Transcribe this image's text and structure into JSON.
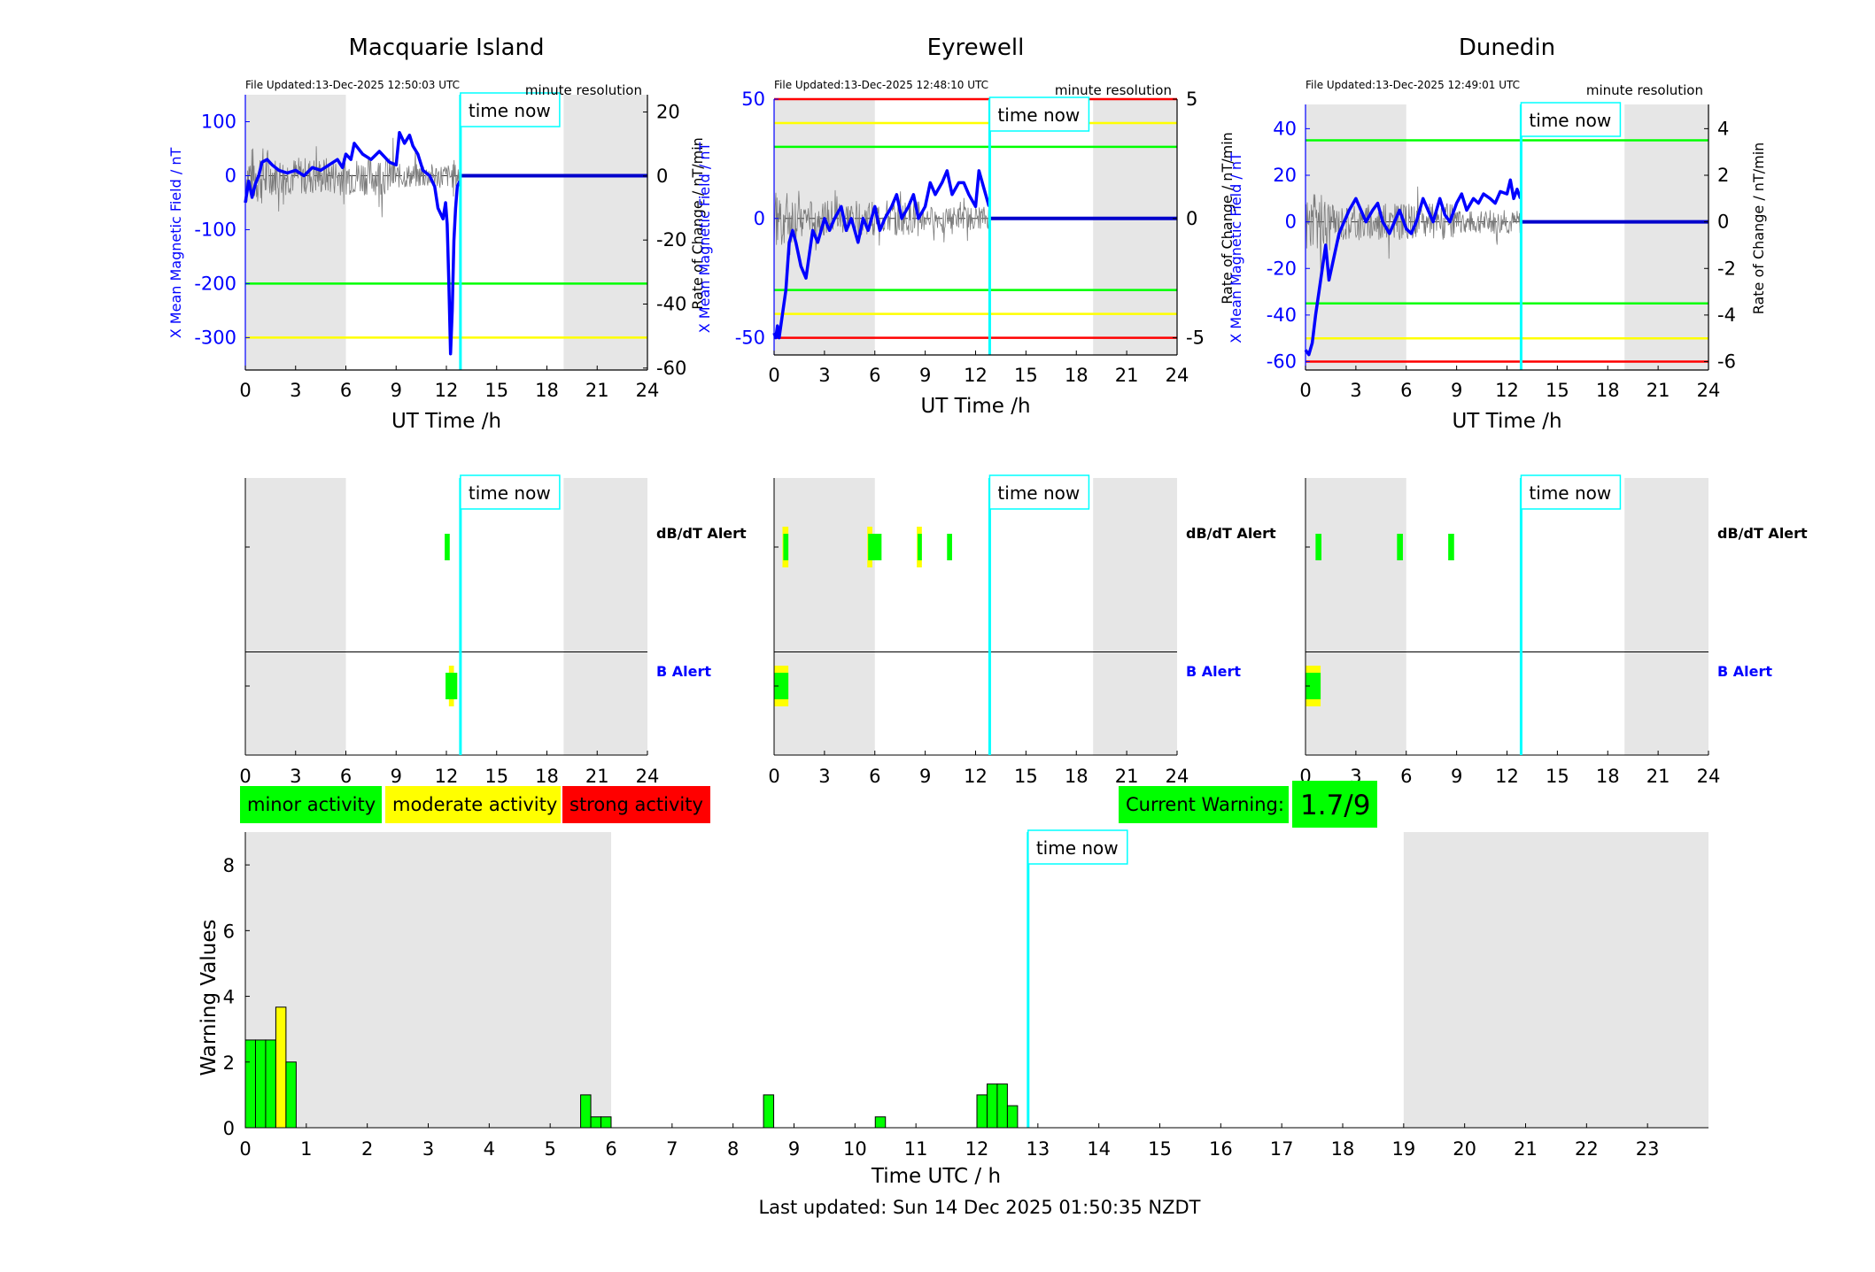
{
  "last_updated": "Last updated: Sun 14 Dec 2025 01:50:35 NZDT",
  "time_now_label": "time now",
  "now_hour": 12.84,
  "colors": {
    "minor": "#00ff00",
    "moderate": "#ffff00",
    "strong": "#ff0000",
    "now": "#00ffff",
    "field": "#0000ff",
    "night": "#e6e6e6"
  },
  "legend": {
    "minor": "minor activity",
    "moderate": "moderate activity",
    "strong": "strong activity"
  },
  "current_warning": {
    "label": "Current Warning:",
    "value": "1.7/9"
  },
  "alert_labels": {
    "dbdt": "dB/dT Alert",
    "b": "B Alert"
  },
  "chart_data": [
    {
      "type": "line",
      "station": "Macquarie Island",
      "title": "Macquarie Island",
      "file_updated": "File Updated:13-Dec-2025 12:50:03 UTC",
      "resolution": "minute resolution",
      "xlabel": "UT Time /h",
      "ylabel_left": "X Mean Magnetic Field / nT",
      "ylabel_right": "Rate of Change / nT/min",
      "xlim": [
        0,
        24
      ],
      "xticks": [
        0,
        3,
        6,
        9,
        12,
        15,
        18,
        21,
        24
      ],
      "xtick_labels": [
        "0",
        "3",
        "6",
        "9",
        "12",
        "15",
        "18",
        "21",
        "24"
      ],
      "ylim_left": [
        -360,
        150
      ],
      "yticks_left": [
        100,
        0,
        -100,
        -200,
        -300
      ],
      "ytick_labels_left": [
        "100",
        "0",
        "-100",
        "-200",
        "-300"
      ],
      "ylim_right": [
        -60.6,
        25.4
      ],
      "yticks_right": [
        20,
        0,
        -20,
        -40,
        -60
      ],
      "ytick_labels_right": [
        "20",
        "0",
        "-20",
        "-40",
        "-60"
      ],
      "night_shading": [
        [
          0,
          6
        ],
        [
          19,
          24
        ]
      ],
      "threshold_lines": [
        {
          "y": -200,
          "color": "#00ff00"
        },
        {
          "y": -300,
          "color": "#ffff00"
        }
      ],
      "field_x": [
        0,
        0.2,
        0.4,
        0.6,
        0.8,
        1,
        1.3,
        1.6,
        2,
        2.5,
        3,
        3.5,
        4,
        4.5,
        5,
        5.5,
        5.8,
        6,
        6.3,
        6.5,
        7,
        7.5,
        8,
        8.3,
        8.6,
        9,
        9.2,
        9.5,
        9.8,
        10,
        10.3,
        10.6,
        11,
        11.3,
        11.5,
        11.8,
        11.95,
        12.05,
        12.15,
        12.25,
        12.35,
        12.45,
        12.55,
        12.65,
        12.8
      ],
      "field_y": [
        -50,
        -10,
        -40,
        -15,
        0,
        25,
        30,
        20,
        10,
        5,
        10,
        0,
        15,
        10,
        20,
        30,
        15,
        40,
        30,
        60,
        40,
        30,
        45,
        35,
        25,
        20,
        80,
        60,
        75,
        55,
        40,
        10,
        0,
        -20,
        -60,
        -80,
        -50,
        -90,
        -200,
        -330,
        -250,
        -120,
        -60,
        -20,
        -10
      ],
      "forecast_y": 0,
      "rate_trace_range": [
        0,
        12.84
      ]
    },
    {
      "type": "line",
      "station": "Eyrewell",
      "title": "Eyrewell",
      "file_updated": "File Updated:13-Dec-2025 12:48:10 UTC",
      "resolution": "minute resolution",
      "xlabel": "UT Time /h",
      "ylabel_left": "X Mean Magnetic Field / nT",
      "ylabel_right": "Rate of Change / nT/min",
      "xlim": [
        0,
        24
      ],
      "xticks": [
        0,
        3,
        6,
        9,
        12,
        15,
        18,
        21,
        24
      ],
      "xtick_labels": [
        "0",
        "3",
        "6",
        "9",
        "12",
        "15",
        "18",
        "21",
        "24"
      ],
      "ylim_left": [
        -57.2,
        50
      ],
      "yticks_left": [
        50,
        0,
        -50
      ],
      "ytick_labels_left": [
        "50",
        "0",
        "-50"
      ],
      "ylim_right": [
        -5.72,
        5
      ],
      "yticks_right": [
        5,
        0,
        -5
      ],
      "ytick_labels_right": [
        "5",
        "0",
        "-5"
      ],
      "night_shading": [
        [
          0,
          6
        ],
        [
          19,
          24
        ]
      ],
      "threshold_lines": [
        {
          "y": 50,
          "color": "#ff0000"
        },
        {
          "y": 40,
          "color": "#ffff00"
        },
        {
          "y": 30,
          "color": "#00ff00"
        },
        {
          "y": -30,
          "color": "#00ff00"
        },
        {
          "y": -40,
          "color": "#ffff00"
        },
        {
          "y": -50,
          "color": "#ff0000"
        }
      ],
      "field_x": [
        0,
        0.1,
        0.2,
        0.3,
        0.5,
        0.7,
        0.9,
        1.1,
        1.3,
        1.6,
        1.9,
        2.1,
        2.3,
        2.6,
        3,
        3.3,
        3.6,
        4,
        4.3,
        4.6,
        5,
        5.3,
        5.6,
        6,
        6.3,
        6.6,
        7,
        7.3,
        7.6,
        8,
        8.3,
        8.6,
        9,
        9.3,
        9.6,
        10,
        10.3,
        10.6,
        11,
        11.3,
        11.6,
        12,
        12.2,
        12.4,
        12.6,
        12.8
      ],
      "field_y": [
        -48,
        -50,
        -45,
        -50,
        -40,
        -30,
        -10,
        -5,
        -10,
        -20,
        -25,
        -15,
        -5,
        -10,
        0,
        -5,
        0,
        5,
        -5,
        0,
        -10,
        0,
        -5,
        5,
        -5,
        0,
        5,
        10,
        0,
        5,
        10,
        0,
        5,
        15,
        10,
        15,
        20,
        10,
        15,
        15,
        10,
        5,
        20,
        15,
        10,
        5
      ],
      "forecast_y": 0,
      "rate_trace_range": [
        0,
        12.84
      ]
    },
    {
      "type": "line",
      "station": "Dunedin",
      "title": "Dunedin",
      "file_updated": "File Updated:13-Dec-2025 12:49:01 UTC",
      "resolution": "minute resolution",
      "xlabel": "UT Time /h",
      "ylabel_left": "X Mean Magnetic Field / nT",
      "ylabel_right": "Rate of Change / nT/min",
      "xlim": [
        0,
        24
      ],
      "xticks": [
        0,
        3,
        6,
        9,
        12,
        15,
        18,
        21,
        24
      ],
      "xtick_labels": [
        "0",
        "3",
        "6",
        "9",
        "12",
        "15",
        "18",
        "21",
        "24"
      ],
      "ylim_left": [
        -63.6,
        50.4
      ],
      "yticks_left": [
        40,
        20,
        0,
        -20,
        -40,
        -60
      ],
      "ytick_labels_left": [
        "40",
        "20",
        "0",
        "-20",
        "-40",
        "-60"
      ],
      "ylim_right": [
        -6.36,
        5.04
      ],
      "yticks_right": [
        4,
        2,
        0,
        -2,
        -4,
        -6
      ],
      "ytick_labels_right": [
        "4",
        "2",
        "0",
        "-2",
        "-4",
        "-6"
      ],
      "night_shading": [
        [
          0,
          6
        ],
        [
          19,
          24
        ]
      ],
      "threshold_lines": [
        {
          "y": 35,
          "color": "#00ff00"
        },
        {
          "y": -35,
          "color": "#00ff00"
        },
        {
          "y": -50,
          "color": "#ffff00"
        },
        {
          "y": -60,
          "color": "#ff0000"
        }
      ],
      "field_x": [
        0,
        0.2,
        0.4,
        0.6,
        0.8,
        1,
        1.2,
        1.4,
        1.7,
        2,
        2.3,
        2.6,
        3,
        3.3,
        3.6,
        4,
        4.3,
        4.6,
        5,
        5.3,
        5.6,
        6,
        6.3,
        6.6,
        7,
        7.3,
        7.6,
        8,
        8.3,
        8.6,
        9,
        9.3,
        9.6,
        10,
        10.3,
        10.6,
        11,
        11.3,
        11.6,
        12,
        12.2,
        12.4,
        12.6,
        12.8
      ],
      "field_y": [
        -55,
        -57,
        -52,
        -40,
        -30,
        -20,
        -10,
        -25,
        -15,
        -5,
        0,
        5,
        10,
        5,
        0,
        5,
        8,
        0,
        -5,
        0,
        5,
        -3,
        -5,
        0,
        10,
        5,
        0,
        10,
        3,
        0,
        8,
        12,
        5,
        10,
        8,
        12,
        10,
        8,
        13,
        12,
        18,
        10,
        14,
        10
      ],
      "forecast_y": 0,
      "rate_trace_range": [
        0,
        12.84
      ]
    },
    {
      "type": "bar",
      "station": "Macquarie Island",
      "name": "alerts-macquarie",
      "xlim": [
        0,
        24
      ],
      "xticks": [
        0,
        3,
        6,
        9,
        12,
        15,
        18,
        21,
        24
      ],
      "xtick_labels": [
        "0",
        "3",
        "6",
        "9",
        "12",
        "15",
        "18",
        "21",
        "24"
      ],
      "night_shading": [
        [
          0,
          6
        ],
        [
          19,
          24
        ]
      ],
      "dbdt_alerts": [
        {
          "start": 11.9,
          "end": 12.2,
          "level": "minor"
        }
      ],
      "b_alerts": [
        {
          "start": 12.15,
          "end": 12.45,
          "level": "moderate"
        },
        {
          "start": 11.95,
          "end": 12.65,
          "level": "minor"
        }
      ]
    },
    {
      "type": "bar",
      "station": "Eyrewell",
      "name": "alerts-eyrewell",
      "xlim": [
        0,
        24
      ],
      "xticks": [
        0,
        3,
        6,
        9,
        12,
        15,
        18,
        21,
        24
      ],
      "xtick_labels": [
        "0",
        "3",
        "6",
        "9",
        "12",
        "15",
        "18",
        "21",
        "24"
      ],
      "night_shading": [
        [
          0,
          6
        ],
        [
          19,
          24
        ]
      ],
      "dbdt_alerts": [
        {
          "start": 0.5,
          "end": 0.85,
          "level": "moderate"
        },
        {
          "start": 0.55,
          "end": 0.85,
          "level": "minor"
        },
        {
          "start": 5.55,
          "end": 5.85,
          "level": "moderate"
        },
        {
          "start": 5.6,
          "end": 6.4,
          "level": "minor"
        },
        {
          "start": 8.5,
          "end": 8.8,
          "level": "moderate"
        },
        {
          "start": 8.55,
          "end": 8.8,
          "level": "minor"
        },
        {
          "start": 10.3,
          "end": 10.6,
          "level": "minor"
        }
      ],
      "b_alerts": [
        {
          "start": 0,
          "end": 0.85,
          "level": "moderate"
        },
        {
          "start": 0,
          "end": 0.85,
          "level": "minor"
        }
      ]
    },
    {
      "type": "bar",
      "station": "Dunedin",
      "name": "alerts-dunedin",
      "xlim": [
        0,
        24
      ],
      "xticks": [
        0,
        3,
        6,
        9,
        12,
        15,
        18,
        21,
        24
      ],
      "xtick_labels": [
        "0",
        "3",
        "6",
        "9",
        "12",
        "15",
        "18",
        "21",
        "24"
      ],
      "night_shading": [
        [
          0,
          6
        ],
        [
          19,
          24
        ]
      ],
      "dbdt_alerts": [
        {
          "start": 0.6,
          "end": 0.95,
          "level": "minor"
        },
        {
          "start": 5.45,
          "end": 5.8,
          "level": "minor"
        },
        {
          "start": 8.5,
          "end": 8.85,
          "level": "minor"
        }
      ],
      "b_alerts": [
        {
          "start": 0,
          "end": 0.9,
          "level": "moderate"
        },
        {
          "start": 0,
          "end": 0.9,
          "level": "minor"
        }
      ]
    },
    {
      "type": "bar",
      "name": "warning-values",
      "xlabel": "Time UTC / h",
      "ylabel": "Warning Values",
      "xlim": [
        0,
        24
      ],
      "xticks": [
        0,
        1,
        2,
        3,
        4,
        5,
        6,
        7,
        8,
        9,
        10,
        11,
        12,
        13,
        14,
        15,
        16,
        17,
        18,
        19,
        20,
        21,
        22,
        23
      ],
      "xtick_labels": [
        "0",
        "1",
        "2",
        "3",
        "4",
        "5",
        "6",
        "7",
        "8",
        "9",
        "10",
        "11",
        "12",
        "13",
        "14",
        "15",
        "16",
        "17",
        "18",
        "19",
        "20",
        "21",
        "22",
        "23"
      ],
      "ylim": [
        0,
        9
      ],
      "yticks": [
        0,
        2,
        4,
        6,
        8
      ],
      "ytick_labels": [
        "0",
        "2",
        "4",
        "6",
        "8"
      ],
      "night_shading": [
        [
          0,
          6
        ],
        [
          19,
          24
        ]
      ],
      "bar_width_h": 0.1667,
      "bars": [
        {
          "x": 0,
          "value": 2.67,
          "level": "minor"
        },
        {
          "x": 0.167,
          "value": 2.67,
          "level": "minor"
        },
        {
          "x": 0.333,
          "value": 2.67,
          "level": "minor"
        },
        {
          "x": 0.5,
          "value": 3.67,
          "level": "moderate"
        },
        {
          "x": 0.667,
          "value": 2,
          "level": "minor"
        },
        {
          "x": 5.5,
          "value": 1,
          "level": "minor"
        },
        {
          "x": 5.667,
          "value": 0.33,
          "level": "minor"
        },
        {
          "x": 5.833,
          "value": 0.33,
          "level": "minor"
        },
        {
          "x": 8.5,
          "value": 1,
          "level": "minor"
        },
        {
          "x": 10.333,
          "value": 0.33,
          "level": "minor"
        },
        {
          "x": 12,
          "value": 1,
          "level": "minor"
        },
        {
          "x": 12.167,
          "value": 1.33,
          "level": "minor"
        },
        {
          "x": 12.333,
          "value": 1.33,
          "level": "minor"
        },
        {
          "x": 12.5,
          "value": 0.67,
          "level": "minor"
        }
      ]
    }
  ]
}
